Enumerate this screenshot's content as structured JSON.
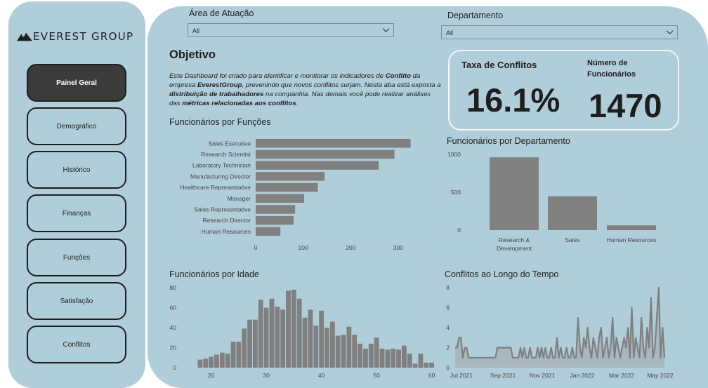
{
  "brand": {
    "name": "EVEREST GROUP",
    "logo_icon": "mountain-icon"
  },
  "nav": [
    {
      "label": "Painel Geral",
      "active": true
    },
    {
      "label": "Demográfico",
      "active": false
    },
    {
      "label": "Histórico",
      "active": false
    },
    {
      "label": "Finanças",
      "active": false
    },
    {
      "label": "Funções",
      "active": false
    },
    {
      "label": "Satisfação",
      "active": false
    },
    {
      "label": "Conflitos",
      "active": false
    }
  ],
  "filters": {
    "area": {
      "label": "Área de Atuação",
      "value": "All"
    },
    "department": {
      "label": "Departamento",
      "value": "All"
    }
  },
  "objective": {
    "title": "Objetivo",
    "parts": [
      {
        "t": "Este Dashboard foi criado para identificar e monitorar os indicadores de ",
        "b": false
      },
      {
        "t": "Conflito",
        "b": true
      },
      {
        "t": " da empresa ",
        "b": false
      },
      {
        "t": "EverestGroup",
        "b": true
      },
      {
        "t": ", prevenindo que novos conflitos surjam. Nesta aba está exposta a ",
        "b": false
      },
      {
        "t": "distribuição de trabalhadores",
        "b": true
      },
      {
        "t": " na companhia. Nas demais você pode realizar análises das ",
        "b": false
      },
      {
        "t": "métricas relacionadas aos conflitos",
        "b": true
      },
      {
        "t": ".",
        "b": false
      }
    ]
  },
  "kpis": {
    "conflict_rate": {
      "label": "Taxa de Conflitos",
      "value": "16.1%"
    },
    "employees": {
      "label_line1": "Número de",
      "label_line2": "Funcionários",
      "value": "1470"
    }
  },
  "colors": {
    "background": "#b0ced9",
    "bar": "#808080",
    "accent_dark": "#3b3b3b"
  },
  "chart_data": [
    {
      "id": "roles",
      "type": "bar",
      "orientation": "horizontal",
      "title": "Funcionários por Funções",
      "categories": [
        "Sales Executive",
        "Research Scientist",
        "Laboratory Technician",
        "Manufacturing Director",
        "Healthcare Representative",
        "Manager",
        "Sales Representative",
        "Research Director",
        "Human Resources"
      ],
      "values": [
        326,
        292,
        259,
        145,
        131,
        102,
        83,
        80,
        52
      ],
      "xticks": [
        0,
        100,
        200,
        300
      ],
      "xlim": [
        0,
        340
      ]
    },
    {
      "id": "departments",
      "type": "bar",
      "title": "Funcionários por Departamento",
      "categories": [
        [
          "Research &",
          "Development"
        ],
        [
          "Sales"
        ],
        [
          "Human Resources"
        ]
      ],
      "values": [
        961,
        446,
        63
      ],
      "yticks": [
        0,
        500,
        1000
      ],
      "ylim": [
        0,
        1000
      ]
    },
    {
      "id": "age",
      "type": "bar",
      "title": "Funcionários por Idade",
      "x": [
        18,
        19,
        20,
        21,
        22,
        23,
        24,
        25,
        26,
        27,
        28,
        29,
        30,
        31,
        32,
        33,
        34,
        35,
        36,
        37,
        38,
        39,
        40,
        41,
        42,
        43,
        44,
        45,
        46,
        47,
        48,
        49,
        50,
        51,
        52,
        53,
        54,
        55,
        56,
        57,
        58,
        59,
        60
      ],
      "values": [
        8,
        9,
        11,
        13,
        15,
        14,
        26,
        26,
        39,
        48,
        48,
        68,
        60,
        69,
        61,
        58,
        77,
        78,
        69,
        50,
        58,
        42,
        57,
        40,
        46,
        32,
        33,
        41,
        33,
        24,
        19,
        24,
        30,
        19,
        18,
        19,
        18,
        22,
        14,
        4,
        14,
        5,
        5
      ],
      "xticks": [
        20,
        30,
        40,
        50,
        60
      ],
      "yticks": [
        0,
        20,
        40,
        60,
        80
      ],
      "ylim": [
        0,
        80
      ]
    },
    {
      "id": "conflicts-time",
      "type": "area",
      "title": "Conflitos ao Longo do Tempo",
      "values": [
        2,
        2,
        3,
        3,
        1,
        2,
        2,
        1,
        1,
        1,
        1,
        1,
        1,
        1,
        1,
        1,
        1,
        1,
        1,
        1,
        1,
        1,
        2,
        2,
        2,
        2,
        2,
        2,
        2,
        2,
        1,
        1,
        1,
        1,
        2,
        1,
        2,
        1,
        1,
        2,
        1,
        1,
        1,
        2,
        1,
        2,
        1,
        2,
        1,
        1,
        2,
        1,
        1,
        3,
        1,
        2,
        1,
        1,
        2,
        1,
        1,
        2,
        1,
        1,
        5,
        2,
        1,
        3,
        2,
        4,
        2,
        1,
        3,
        2,
        1,
        3,
        4,
        1,
        2,
        3,
        1,
        2,
        5,
        1,
        3,
        2,
        1,
        2,
        3,
        2,
        4,
        1,
        6,
        1,
        3,
        2,
        1,
        5,
        2,
        1,
        4,
        2,
        7,
        1,
        2,
        5,
        8,
        1,
        4,
        1
      ],
      "xticks": [
        "Jul 2021",
        "Sep 2021",
        "Nov 2021",
        "Jan 2022",
        "Mar 2022",
        "May 2022"
      ],
      "yticks": [
        0,
        2,
        4,
        6,
        8
      ],
      "ylim": [
        0,
        8
      ]
    }
  ]
}
